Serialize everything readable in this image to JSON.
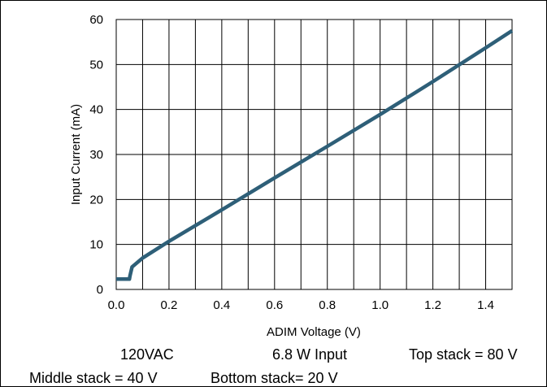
{
  "chart_data": {
    "type": "line",
    "xlabel": "ADIM Voltage (V)",
    "ylabel": "Input Current (mA)",
    "xlim": [
      0.0,
      1.5
    ],
    "ylim": [
      0,
      60
    ],
    "x_ticks": [
      "0.0",
      "0.2",
      "0.4",
      "0.6",
      "0.8",
      "1.0",
      "1.2",
      "1.4"
    ],
    "y_ticks": [
      "0",
      "10",
      "20",
      "30",
      "40",
      "50",
      "60"
    ],
    "grid": true,
    "line_color": "#2e5f78",
    "series": [
      {
        "x": [
          0.0,
          0.05,
          0.052,
          0.06,
          0.1,
          0.2,
          0.4,
          0.6,
          0.8,
          1.0,
          1.2,
          1.4,
          1.5
        ],
        "y": [
          2.3,
          2.3,
          3.0,
          5.0,
          7.0,
          10.7,
          17.7,
          24.8,
          31.8,
          38.9,
          46.2,
          53.7,
          57.5
        ]
      }
    ]
  },
  "notes": {
    "line1": [
      "120VAC",
      "6.8 W Input",
      "Top stack = 80 V"
    ],
    "line2": [
      "Middle stack = 40 V",
      "Bottom stack= 20 V"
    ]
  }
}
